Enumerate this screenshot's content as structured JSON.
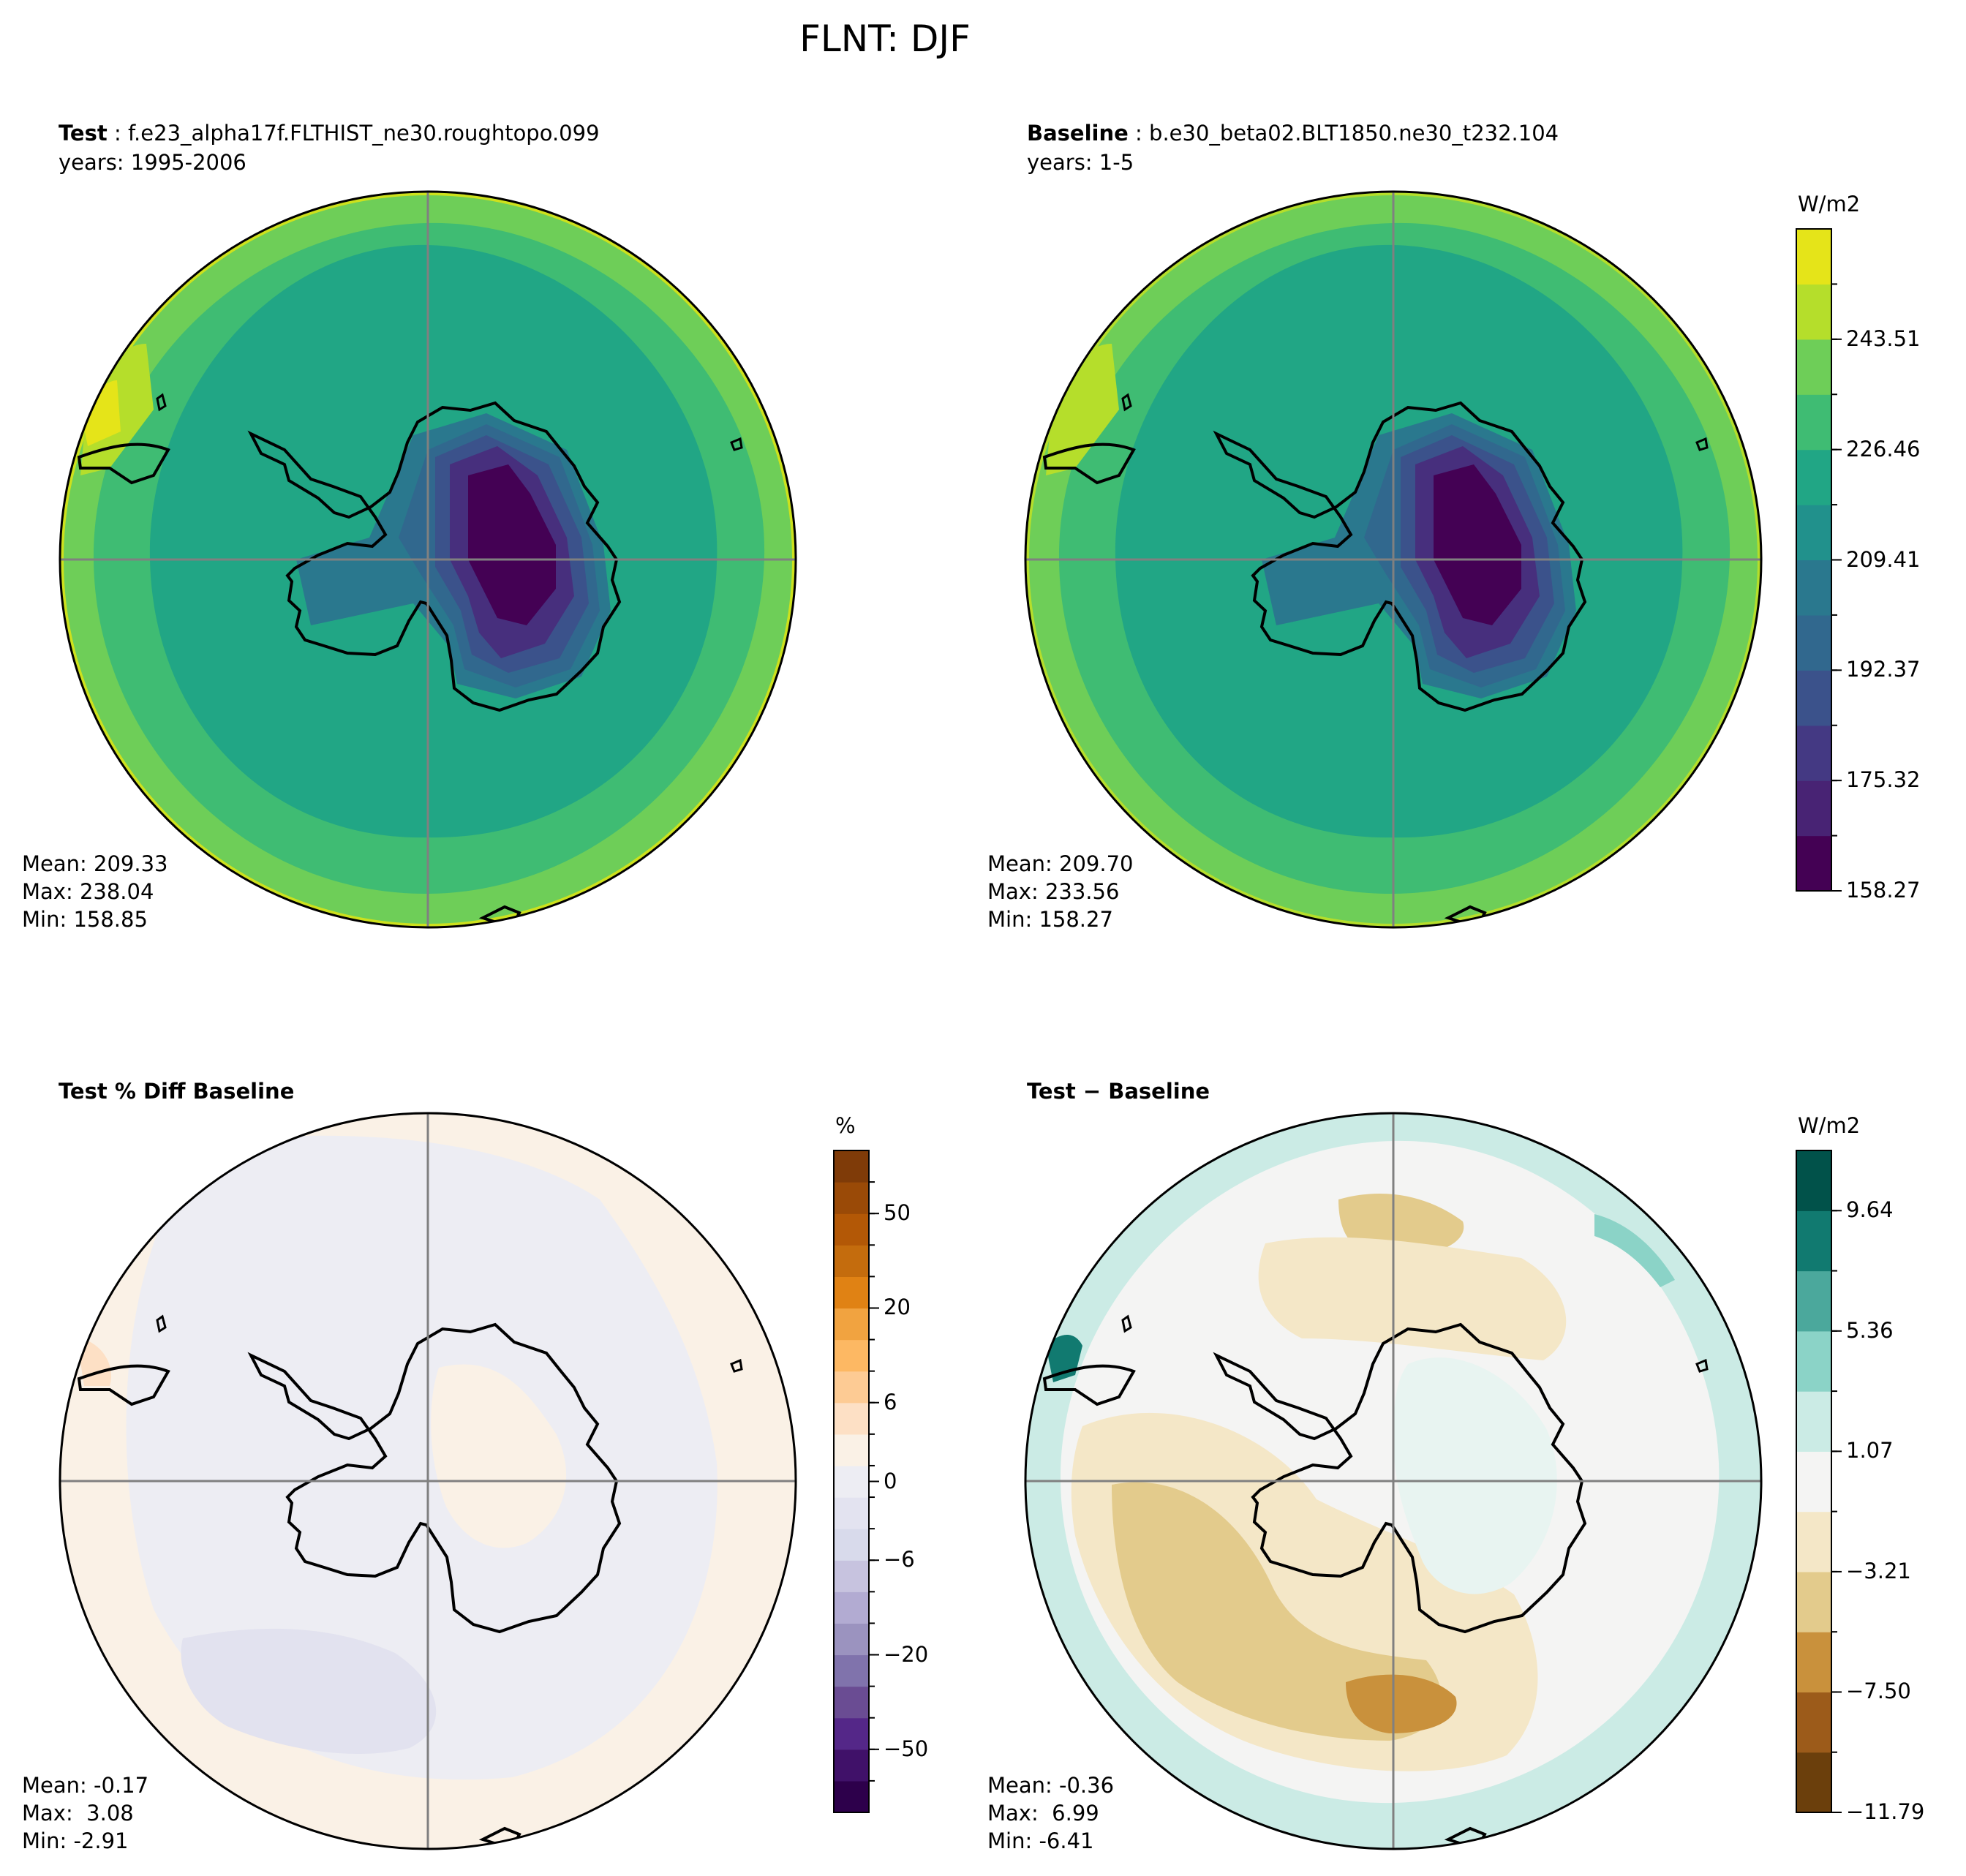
{
  "figure": {
    "title": "FLNT: DJF"
  },
  "panels": {
    "test": {
      "label": "Test",
      "case": "f.e23_alpha17f.FLTHIST_ne30.roughtopo.099",
      "years": "years: 1995-2006",
      "mean": "Mean: 209.33",
      "max": "Max: 238.04",
      "min": "Min: 158.85"
    },
    "baseline": {
      "label": "Baseline",
      "case": "b.e30_beta02.BLT1850.ne30_t232.104",
      "years": "years: 1-5",
      "mean": "Mean: 209.70",
      "max": "Max: 233.56",
      "min": "Min: 158.27"
    },
    "pctdiff": {
      "title": "Test % Diff Baseline",
      "mean": "Mean: -0.17",
      "max": "Max:  3.08",
      "min": "Min: -2.91"
    },
    "diff": {
      "title_a": "Test",
      "title_b": "Baseline",
      "mean": "Mean: -0.36",
      "max": "Max:  6.99",
      "min": "Min: -6.41"
    }
  },
  "colorbars": {
    "field": {
      "unit": "W/m2",
      "ticks": [
        "243.51",
        "226.46",
        "209.41",
        "192.37",
        "175.32",
        "158.27"
      ]
    },
    "pct": {
      "unit": "%",
      "ticks": [
        "50",
        "20",
        "6",
        "0",
        "−6",
        "−20",
        "−50"
      ]
    },
    "diff": {
      "unit": "W/m2",
      "ticks": [
        "9.64",
        "5.36",
        "1.07",
        "−3.21",
        "−7.50",
        "−11.79"
      ]
    }
  },
  "chart_data": [
    {
      "type": "heatmap",
      "title": "Test: f.e23_alpha17f.FLTHIST_ne30.roughtopo.099",
      "projection": "south-polar stereographic",
      "colorbar_ticks": [
        243.51,
        226.46,
        209.41,
        192.37,
        175.32,
        158.27
      ],
      "units": "W/m2",
      "mean": 209.33,
      "max": 238.04,
      "min": 158.85
    },
    {
      "type": "heatmap",
      "title": "Baseline: b.e30_beta02.BLT1850.ne30_t232.104",
      "projection": "south-polar stereographic",
      "colorbar_ticks": [
        243.51,
        226.46,
        209.41,
        192.37,
        175.32,
        158.27
      ],
      "units": "W/m2",
      "mean": 209.7,
      "max": 233.56,
      "min": 158.27
    },
    {
      "type": "heatmap",
      "title": "Test % Diff Baseline",
      "projection": "south-polar stereographic",
      "colorbar_ticks": [
        50,
        20,
        6,
        0,
        -6,
        -20,
        -50
      ],
      "units": "%",
      "mean": -0.17,
      "max": 3.08,
      "min": -2.91
    },
    {
      "type": "heatmap",
      "title": "Test - Baseline",
      "projection": "south-polar stereographic",
      "colorbar_ticks": [
        9.64,
        5.36,
        1.07,
        -3.21,
        -7.5,
        -11.79
      ],
      "units": "W/m2",
      "mean": -0.36,
      "max": 6.99,
      "min": -6.41
    }
  ]
}
